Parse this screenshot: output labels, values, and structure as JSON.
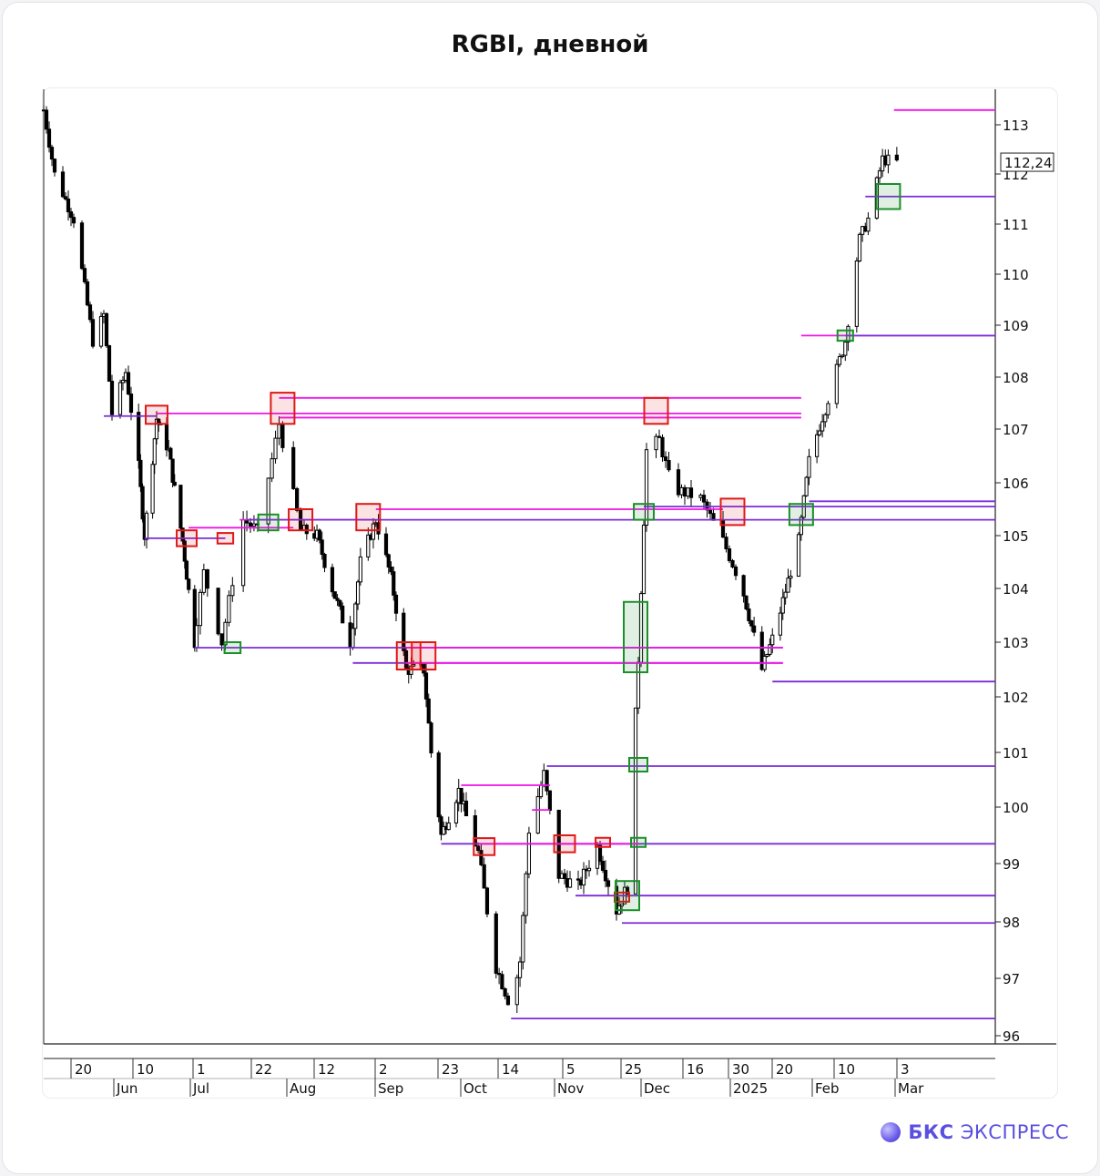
{
  "title": "RGBI, дневной",
  "brand": {
    "strong": "БКС",
    "rest": "ЭКСПРЕСС",
    "logo_icon": "bks-sphere-icon"
  },
  "chart_data": {
    "type": "candlestick",
    "title": "RGBI, дневной",
    "y_ticks": [
      96,
      97,
      98,
      99,
      100,
      101,
      102,
      103,
      104,
      105,
      106,
      107,
      108,
      109,
      110,
      111,
      112,
      113
    ],
    "current_price_label": "112,24",
    "x_day_ticks": [
      "20",
      "10",
      "1",
      "22",
      "12",
      "2",
      "23",
      "14",
      "5",
      "25",
      "16",
      "30",
      "20",
      "10",
      "3"
    ],
    "x_month_ticks": [
      "Jun",
      "Jul",
      "Aug",
      "Sep",
      "Oct",
      "Nov",
      "Dec",
      "2025",
      "Feb",
      "Mar"
    ],
    "price_path": [
      [
        "2024-05-13",
        113.3
      ],
      [
        "2024-05-17",
        112.0
      ],
      [
        "2024-05-24",
        111.1
      ],
      [
        "2024-05-31",
        108.7
      ],
      [
        "2024-06-04",
        109.2
      ],
      [
        "2024-06-07",
        107.3
      ],
      [
        "2024-06-12",
        108.1
      ],
      [
        "2024-06-17",
        106.3
      ],
      [
        "2024-06-20",
        105.0
      ],
      [
        "2024-06-26",
        107.2
      ],
      [
        "2024-07-02",
        106.6
      ],
      [
        "2024-07-09",
        104.9
      ],
      [
        "2024-07-15",
        103.0
      ],
      [
        "2024-07-18",
        104.3
      ],
      [
        "2024-07-23",
        103.0
      ],
      [
        "2024-07-29",
        105.3
      ],
      [
        "2024-08-02",
        105.1
      ],
      [
        "2024-08-08",
        107.1
      ],
      [
        "2024-08-14",
        105.1
      ],
      [
        "2024-08-20",
        105.0
      ],
      [
        "2024-08-26",
        104.0
      ],
      [
        "2024-09-02",
        103.0
      ],
      [
        "2024-09-06",
        104.5
      ],
      [
        "2024-09-12",
        105.3
      ],
      [
        "2024-09-18",
        104.2
      ],
      [
        "2024-09-24",
        102.5
      ],
      [
        "2024-10-01",
        102.5
      ],
      [
        "2024-10-04",
        101.0
      ],
      [
        "2024-10-08",
        99.5
      ],
      [
        "2024-10-15",
        100.3
      ],
      [
        "2024-10-22",
        99.2
      ],
      [
        "2024-10-28",
        97.2
      ],
      [
        "2024-11-02",
        96.5
      ],
      [
        "2024-11-05",
        97.3
      ],
      [
        "2024-11-08",
        99.6
      ],
      [
        "2024-11-13",
        100.6
      ],
      [
        "2024-11-18",
        98.8
      ],
      [
        "2024-11-25",
        98.6
      ],
      [
        "2024-12-02",
        99.3
      ],
      [
        "2024-12-09",
        98.2
      ],
      [
        "2024-12-13",
        98.6
      ],
      [
        "2024-12-17",
        102.7
      ],
      [
        "2024-12-20",
        106.6
      ],
      [
        "2024-12-24",
        106.8
      ],
      [
        "2024-12-28",
        105.9
      ],
      [
        "2025-01-06",
        105.7
      ],
      [
        "2025-01-13",
        104.9
      ],
      [
        "2025-01-20",
        103.9
      ],
      [
        "2025-01-27",
        102.5
      ],
      [
        "2025-02-01",
        103.2
      ],
      [
        "2025-02-10",
        104.9
      ],
      [
        "2025-02-14",
        106.4
      ],
      [
        "2025-02-20",
        107.4
      ],
      [
        "2025-02-27",
        108.7
      ],
      [
        "2025-03-04",
        110.7
      ],
      [
        "2025-03-07",
        111.1
      ],
      [
        "2025-03-12",
        112.3
      ],
      [
        "2025-03-17",
        112.24
      ]
    ],
    "levels": [
      {
        "kind": "resistance",
        "y": 113.3,
        "from": "2025-03-16"
      },
      {
        "kind": "support",
        "y": 111.55,
        "from": "2025-03-06"
      },
      {
        "kind": "resistance",
        "y": 108.8,
        "from": "2025-02-11"
      },
      {
        "kind": "support",
        "y": 108.8,
        "from": "2025-02-27"
      },
      {
        "kind": "resistance",
        "y": 107.6,
        "from": "2024-08-08",
        "to": "2025-02-11"
      },
      {
        "kind": "resistance",
        "y": 107.3,
        "from": "2024-06-26",
        "to": "2025-02-11"
      },
      {
        "kind": "resistance",
        "y": 107.22,
        "from": "2024-08-08",
        "to": "2025-02-11"
      },
      {
        "kind": "support",
        "y": 107.25,
        "from": "2024-06-04",
        "to": "2024-06-26"
      },
      {
        "kind": "support",
        "y": 105.65,
        "from": "2025-02-14"
      },
      {
        "kind": "support",
        "y": 105.55,
        "from": "2024-12-19"
      },
      {
        "kind": "resistance",
        "y": 105.5,
        "from": "2024-09-12",
        "to": "2025-01-13"
      },
      {
        "kind": "resistance",
        "y": 105.3,
        "from": "2024-07-28",
        "to": "2024-09-12"
      },
      {
        "kind": "support",
        "y": 105.3,
        "from": "2024-07-30"
      },
      {
        "kind": "resistance",
        "y": 105.15,
        "from": "2024-07-12",
        "to": "2024-08-12"
      },
      {
        "kind": "support",
        "y": 104.95,
        "from": "2024-06-20",
        "to": "2024-07-24"
      },
      {
        "kind": "support",
        "y": 102.9,
        "from": "2024-07-15",
        "to": "2025-02-04"
      },
      {
        "kind": "resistance",
        "y": 102.9,
        "from": "2024-09-24",
        "to": "2025-02-04"
      },
      {
        "kind": "support",
        "y": 102.62,
        "from": "2024-09-03",
        "to": "2025-02-04"
      },
      {
        "kind": "resistance",
        "y": 102.62,
        "from": "2024-09-24",
        "to": "2025-02-04"
      },
      {
        "kind": "support",
        "y": 102.28,
        "from": "2025-01-31"
      },
      {
        "kind": "support",
        "y": 100.75,
        "from": "2024-11-14"
      },
      {
        "kind": "resistance",
        "y": 100.4,
        "from": "2024-10-16",
        "to": "2024-11-15"
      },
      {
        "kind": "resistance",
        "y": 99.95,
        "from": "2024-11-09",
        "to": "2024-11-15"
      },
      {
        "kind": "support",
        "y": 99.35,
        "from": "2024-10-08"
      },
      {
        "kind": "resistance",
        "y": 99.35,
        "from": "2024-10-22",
        "to": "2024-12-17"
      },
      {
        "kind": "support",
        "y": 98.45,
        "from": "2024-11-24"
      },
      {
        "kind": "support",
        "y": 97.98,
        "from": "2024-12-11"
      },
      {
        "kind": "support",
        "y": 96.3,
        "from": "2024-11-02"
      }
    ],
    "gap_boxes": [
      {
        "kind": "bearish",
        "date": "2024-06-26",
        "y1": 107.1,
        "y2": 107.45
      },
      {
        "kind": "bearish",
        "date": "2024-07-11",
        "y1": 104.8,
        "y2": 105.1
      },
      {
        "kind": "bearish",
        "date": "2024-07-24",
        "y1": 104.85,
        "y2": 105.05
      },
      {
        "kind": "bullish",
        "date": "2024-07-26",
        "y1": 102.8,
        "y2": 103.0
      },
      {
        "kind": "bullish",
        "date": "2024-08-05",
        "y1": 105.1,
        "y2": 105.4
      },
      {
        "kind": "bearish",
        "date": "2024-08-09",
        "y1": 107.1,
        "y2": 107.7
      },
      {
        "kind": "bearish",
        "date": "2024-08-14",
        "y1": 105.1,
        "y2": 105.5
      },
      {
        "kind": "bearish",
        "date": "2024-09-09",
        "y1": 105.1,
        "y2": 105.6
      },
      {
        "kind": "bearish",
        "date": "2024-09-25",
        "y1": 102.5,
        "y2": 103.0
      },
      {
        "kind": "bearish",
        "date": "2024-10-01",
        "y1": 102.5,
        "y2": 103.0
      },
      {
        "kind": "bearish",
        "date": "2024-10-24",
        "y1": 99.15,
        "y2": 99.45
      },
      {
        "kind": "bearish",
        "date": "2024-11-20",
        "y1": 99.2,
        "y2": 99.5
      },
      {
        "kind": "bearish",
        "date": "2024-12-04",
        "y1": 99.3,
        "y2": 99.45
      },
      {
        "kind": "bearish",
        "date": "2024-12-11",
        "y1": 98.35,
        "y2": 98.5
      },
      {
        "kind": "bullish",
        "date": "2024-12-13",
        "y1": 98.2,
        "y2": 98.7
      },
      {
        "kind": "bullish",
        "date": "2024-12-16",
        "y1": 102.45,
        "y2": 103.75
      },
      {
        "kind": "bullish",
        "date": "2024-12-17",
        "y1": 99.3,
        "y2": 99.45
      },
      {
        "kind": "bullish",
        "date": "2024-12-17",
        "y1": 100.65,
        "y2": 100.9
      },
      {
        "kind": "bullish",
        "date": "2024-12-19",
        "y1": 105.3,
        "y2": 105.6
      },
      {
        "kind": "bearish",
        "date": "2024-12-23",
        "y1": 107.1,
        "y2": 107.6
      },
      {
        "kind": "bearish",
        "date": "2025-01-16",
        "y1": 105.2,
        "y2": 105.7
      },
      {
        "kind": "bullish",
        "date": "2025-02-11",
        "y1": 105.2,
        "y2": 105.6
      },
      {
        "kind": "bullish",
        "date": "2025-02-27",
        "y1": 108.7,
        "y2": 108.9
      },
      {
        "kind": "bullish",
        "date": "2025-03-14",
        "y1": 111.3,
        "y2": 111.8
      }
    ],
    "colors": {
      "support": "#7b2cd9",
      "resistance": "#f014e8",
      "bearish_box": "#e01818",
      "bullish_box": "#1a8f2a",
      "candle": "#000000"
    }
  }
}
